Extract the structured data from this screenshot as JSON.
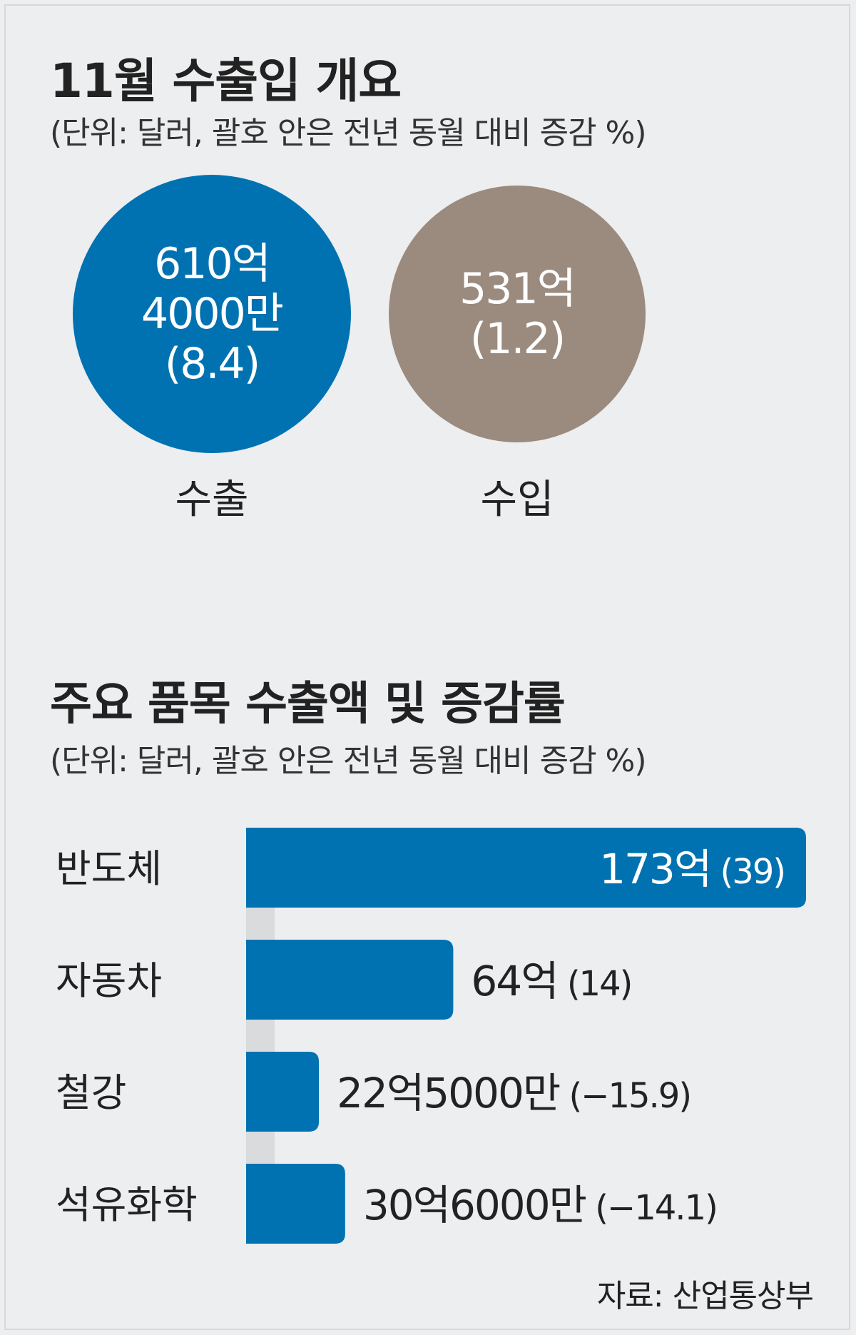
{
  "overview": {
    "title": "11월 수출입 개요",
    "unit": "(단위: 달러, 괄호 안은 전년 동월 대비 증감 %)",
    "export": {
      "lines": [
        "610억",
        "4000만",
        "(8.4)"
      ],
      "label": "수출",
      "color": "#0072b1"
    },
    "import": {
      "lines": [
        "531억",
        "(1.2)"
      ],
      "label": "수입",
      "color": "#9b8b7e"
    }
  },
  "items": {
    "title": "주요 품목 수출액 및 증감률",
    "unit": "(단위: 달러, 괄호 안은 전년 동월 대비 증감 %)"
  },
  "source": "자료: 산업통상부",
  "chart_data": {
    "type": "bar",
    "orientation": "horizontal",
    "title": "주요 품목 수출액 및 증감률",
    "unit": "달러",
    "categories": [
      "반도체",
      "자동차",
      "철강",
      "석유화학"
    ],
    "values": [
      17300000000,
      6400000000,
      2250000000,
      3060000000
    ],
    "value_labels": [
      "173억",
      "64억",
      "22억5000만",
      "30억6000만"
    ],
    "change_labels": [
      "(39)",
      "(14)",
      "(−15.9)",
      "(−14.1)"
    ],
    "change_pct": [
      39,
      14,
      -15.9,
      -14.1
    ],
    "bar_color": "#0072b1",
    "xlim": [
      0,
      17300000000
    ]
  }
}
